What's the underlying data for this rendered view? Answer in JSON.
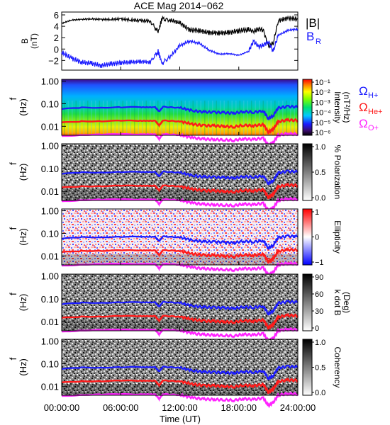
{
  "title": "ACE Mag 2014−062",
  "colors": {
    "blue": "#1a1aff",
    "red": "#ff1a1a",
    "magenta": "#ff22ff",
    "green_band": "#22cc44",
    "black": "#000000"
  },
  "top_panel": {
    "ylabel": "B",
    "yunit": "(nT)",
    "yticks": [
      "6",
      "4",
      "2",
      "0",
      "−2"
    ],
    "legend": {
      "b_total": "|B|",
      "b_r": "B",
      "b_r_sub": "R"
    }
  },
  "freq_axis": {
    "label": "f",
    "unit": "(Hz)",
    "ticks": [
      "1.00",
      "0.10",
      "0.01"
    ]
  },
  "gyro_legend": {
    "symbol": "Ω",
    "h": "H+",
    "he": "He+",
    "o": "O+"
  },
  "colorbars": [
    {
      "label": "Intensity",
      "unit": "(nT²/Hz)",
      "ticks": [
        "10⁻¹",
        "10⁻²",
        "10⁻³",
        "10⁻⁴",
        "10⁻⁵",
        "10⁻⁶"
      ],
      "scale": "spectral"
    },
    {
      "label": "% Polarization",
      "unit": "",
      "ticks": [
        "1.0",
        "0.5",
        "0.0"
      ],
      "scale": "gray"
    },
    {
      "label": "Ellipticity",
      "unit": "",
      "ticks": [
        "1",
        "0",
        "−1"
      ],
      "scale": "bwr"
    },
    {
      "label": "k dot B",
      "unit": "(Deg)",
      "ticks": [
        "90",
        "60",
        "30",
        "0"
      ],
      "scale": "gray"
    },
    {
      "label": "Coherency",
      "unit": "",
      "ticks": [
        "1.0",
        "0.5",
        "0.0"
      ],
      "scale": "gray"
    }
  ],
  "xaxis": {
    "label": "Time (UT)",
    "ticks": [
      "00:00:00",
      "06:00:00",
      "12:00:00",
      "18:00:00",
      "24:00:00"
    ]
  },
  "chart_data": [
    {
      "type": "line",
      "xlabel": "",
      "ylabel": "B (nT)",
      "xlim": [
        0,
        24
      ],
      "ylim": [
        -3.7,
        6.5
      ],
      "x_unit": "hours UT",
      "series": [
        {
          "name": "|B|",
          "x": [
            0,
            1,
            2,
            3,
            4,
            5,
            6,
            7,
            8,
            9,
            9.8,
            10.2,
            11,
            12,
            13,
            14,
            15,
            16,
            17,
            18,
            19,
            19.5,
            20,
            20.5,
            21,
            21.5,
            22,
            23,
            24
          ],
          "values": [
            4.5,
            5.1,
            5.2,
            5.3,
            5.2,
            5.2,
            5.3,
            5.1,
            5.0,
            4.9,
            3.0,
            5.3,
            5.1,
            4.6,
            3.4,
            3.2,
            2.9,
            2.8,
            2.9,
            3.2,
            3.4,
            3.1,
            3.6,
            3.3,
            0.5,
            1.0,
            5.0,
            5.4,
            5.3
          ]
        },
        {
          "name": "B_R",
          "x": [
            0,
            1,
            2,
            3,
            4,
            5,
            6,
            7,
            8,
            9,
            9.8,
            10.2,
            11,
            12,
            13,
            14,
            15,
            16,
            17,
            18,
            19,
            19.5,
            20,
            20.5,
            21,
            21.5,
            22,
            23,
            24
          ],
          "values": [
            -0.6,
            -1.6,
            -2.3,
            -2.5,
            -2.9,
            -2.6,
            -2.4,
            -2.3,
            -2.2,
            -2.3,
            -0.4,
            -2.5,
            -1.4,
            0.6,
            1.4,
            1.0,
            -0.2,
            -0.9,
            -0.8,
            -1.1,
            -0.4,
            1.4,
            0.4,
            0.7,
            1.3,
            -0.4,
            2.4,
            3.3,
            3.5
          ]
        }
      ]
    },
    {
      "type": "heatmap",
      "xlim": [
        0,
        24
      ],
      "ylim": [
        0.004,
        1.2
      ],
      "yscale": "log",
      "series": [
        {
          "name": "ΩH+",
          "x": [
            0,
            2,
            4,
            6,
            8,
            9.5,
            9.9,
            10.3,
            12,
            13.5,
            14.5,
            15.5,
            16.5,
            17.5,
            18.5,
            19.5,
            20.5,
            21.0,
            21.5,
            22,
            23,
            24
          ],
          "values": [
            0.058,
            0.067,
            0.068,
            0.07,
            0.07,
            0.07,
            0.045,
            0.073,
            0.066,
            0.048,
            0.043,
            0.042,
            0.04,
            0.038,
            0.045,
            0.042,
            0.048,
            0.022,
            0.03,
            0.065,
            0.075,
            0.072
          ]
        },
        {
          "name": "ΩHe+",
          "x": [
            0,
            2,
            4,
            6,
            8,
            9.5,
            9.9,
            10.3,
            12,
            13.5,
            14.5,
            15.5,
            16.5,
            17.5,
            18.5,
            19.5,
            20.5,
            21.0,
            21.5,
            22,
            23,
            24
          ],
          "values": [
            0.0145,
            0.0168,
            0.017,
            0.0175,
            0.0175,
            0.0175,
            0.011,
            0.018,
            0.0165,
            0.012,
            0.0107,
            0.0105,
            0.01,
            0.0095,
            0.0112,
            0.0105,
            0.012,
            0.0055,
            0.0075,
            0.016,
            0.019,
            0.018
          ]
        },
        {
          "name": "ΩO+",
          "x": [
            0,
            2,
            4,
            6,
            8,
            9.5,
            9.9,
            10.3,
            12,
            13.5,
            14.5,
            15.5,
            16.5,
            17.5,
            18.5,
            19.5,
            20.5,
            21.0,
            21.5,
            22,
            23,
            24
          ],
          "values": [
            0.0036,
            0.0042,
            0.0043,
            0.0044,
            0.0044,
            0.0044,
            0.0028,
            0.0045,
            0.0041,
            0.003,
            0.0027,
            0.0026,
            0.0025,
            0.0024,
            0.0028,
            0.0026,
            0.003,
            0.0014,
            0.0019,
            0.004,
            0.0047,
            0.0045
          ]
        }
      ]
    }
  ]
}
